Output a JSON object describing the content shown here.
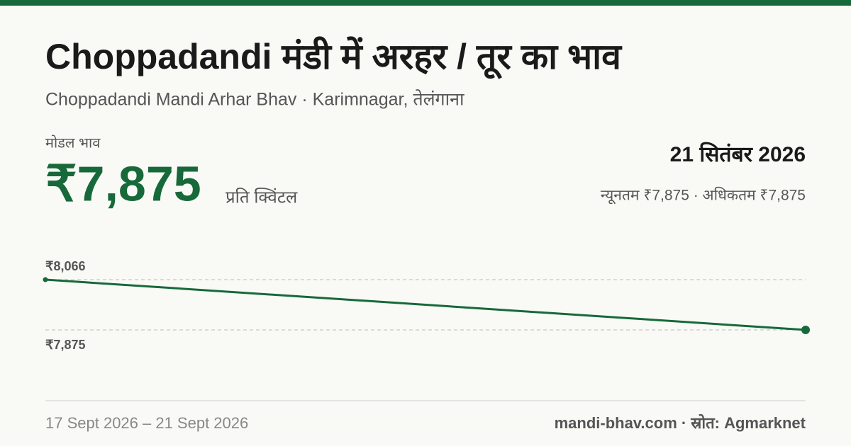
{
  "chart_data": {
    "type": "line",
    "title": "Choppadandi मंडी में अरहर / तूर का भाव",
    "subtitle": "Choppadandi Mandi Arhar Bhav · Karimnagar, तेलंगाना",
    "model_label": "मोडल भाव",
    "model_price": "₹7,875",
    "unit": "प्रति क्विंटल",
    "date": "21 सितंबर 2026",
    "range_text": "न्यूनतम ₹7,875 · अधिकतम ₹7,875",
    "series": [
      {
        "color": "#17693a",
        "values": [
          8066,
          7875
        ]
      }
    ],
    "ylim": [
      7676,
      8214
    ],
    "yticks": [
      {
        "value": 8066,
        "label": "₹8,066"
      },
      {
        "value": 7875,
        "label": "₹7,875"
      }
    ],
    "grid": true,
    "date_range": "17 Sept 2026 – 21 Sept 2026",
    "source": "mandi-bhav.com · स्रोत: Agmarknet"
  }
}
